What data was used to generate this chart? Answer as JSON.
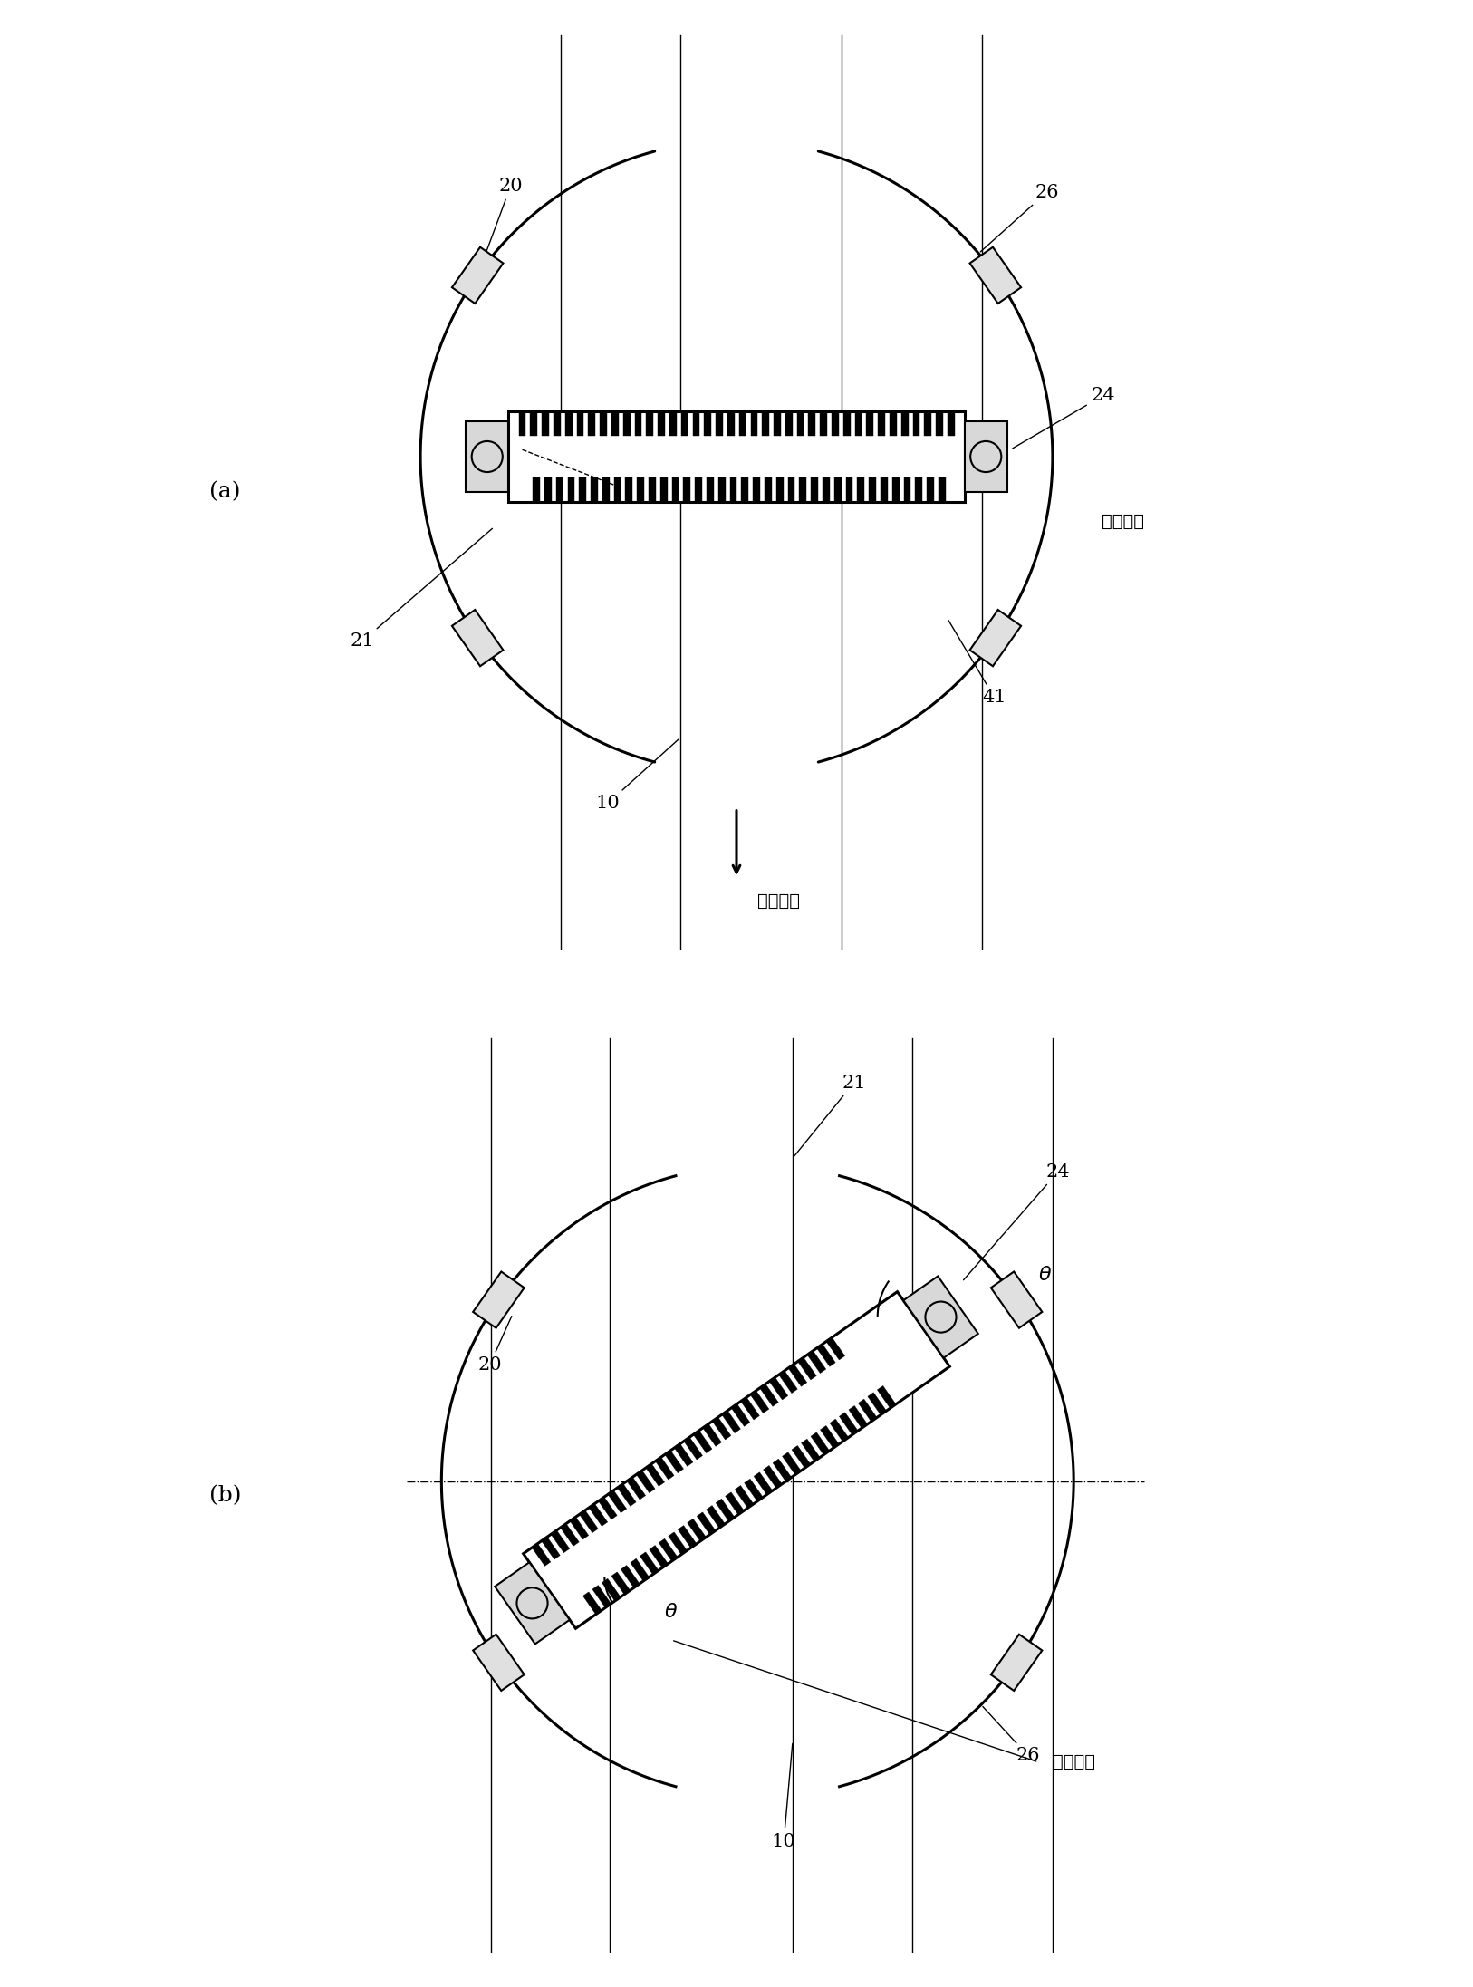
{
  "bg_color": "#ffffff",
  "line_color": "#000000",
  "fig_width": 16.26,
  "fig_height": 21.93,
  "label_a": "(a)",
  "label_b": "(b)",
  "transport": "搜运方向",
  "orientation": "取向方向",
  "theta": "θ"
}
